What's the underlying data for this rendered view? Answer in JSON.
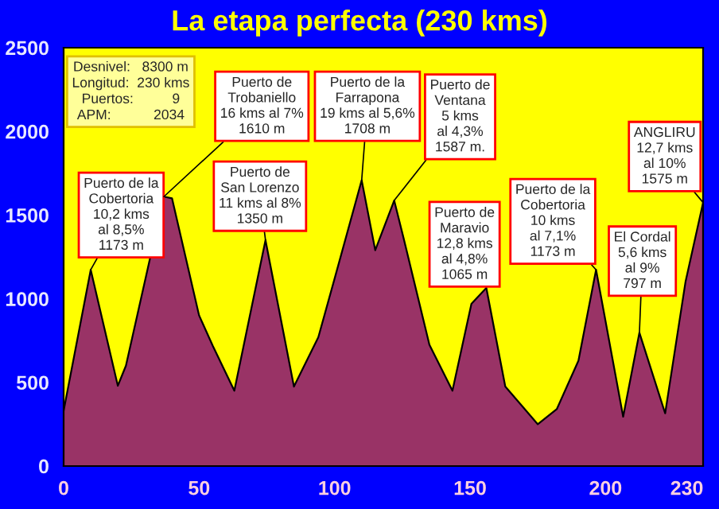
{
  "chart_data": {
    "type": "area",
    "title": "La etapa perfecta (230 kms)",
    "x": [
      0,
      10,
      20,
      23,
      37,
      40,
      50,
      55,
      63,
      74.5,
      85,
      94,
      100,
      110,
      115,
      122,
      125.5,
      135,
      143.5,
      150.5,
      156,
      163,
      175,
      182,
      190,
      196.5,
      206.5,
      212.5,
      222,
      229.5,
      236
    ],
    "series": [
      {
        "color": "#993366",
        "values": [
          330,
          1173,
          480,
          600,
          1610,
          1600,
          900,
          720,
          450,
          1350,
          475,
          770,
          1120,
          1708,
          1290,
          1587,
          1360,
          725,
          450,
          970,
          1065,
          475,
          250,
          340,
          630,
          1173,
          295,
          797,
          315,
          1100,
          1575
        ]
      }
    ],
    "xlim": [
      0,
      236
    ],
    "xticks": [
      0,
      50,
      100,
      150,
      200,
      230
    ],
    "ylim": [
      0,
      2500
    ],
    "yticks": [
      0,
      500,
      1000,
      1500,
      2000,
      2500
    ],
    "grid": false,
    "legend": false,
    "annotations": [
      "Desnivel:   8300 m\nLongitud:  230 kms\nPuertos:          9\nAPM:           2034",
      {
        "text": "Puerto de la\nCobertoria\n10,2 kms\nal 8,5%\n1173 m",
        "x": 10,
        "y": 1173
      },
      {
        "text": "Puerto de\nTrobaniello\n16 kms al 7%\n1610 m",
        "x": 37,
        "y": 1610
      },
      {
        "text": "Puerto de\nSan Lorenzo\n11 kms al 8%\n1350 m",
        "x": 74.5,
        "y": 1350
      },
      {
        "text": "Puerto de la\nFarrapona\n19 kms al 5,6%\n1708 m",
        "x": 110,
        "y": 1708
      },
      {
        "text": "Puerto de\nVentana\n5 kms\nal 4,3%\n1587 m.",
        "x": 122,
        "y": 1587
      },
      {
        "text": "Puerto de\nMaravio\n12,8 kms\nal 4,8%\n1065 m",
        "x": 156,
        "y": 1065
      },
      {
        "text": "Puerto de la\nCobertoria\n10 kms\nal 7,1%\n1173 m",
        "x": 196.5,
        "y": 1173
      },
      {
        "text": "El Cordal\n5,6 kms\nal 9%\n797 m",
        "x": 212.5,
        "y": 797
      },
      {
        "text": "ANGLIRU\n12,7 kms\nal 10%\n1575 m",
        "x": 236,
        "y": 1575
      }
    ]
  }
}
